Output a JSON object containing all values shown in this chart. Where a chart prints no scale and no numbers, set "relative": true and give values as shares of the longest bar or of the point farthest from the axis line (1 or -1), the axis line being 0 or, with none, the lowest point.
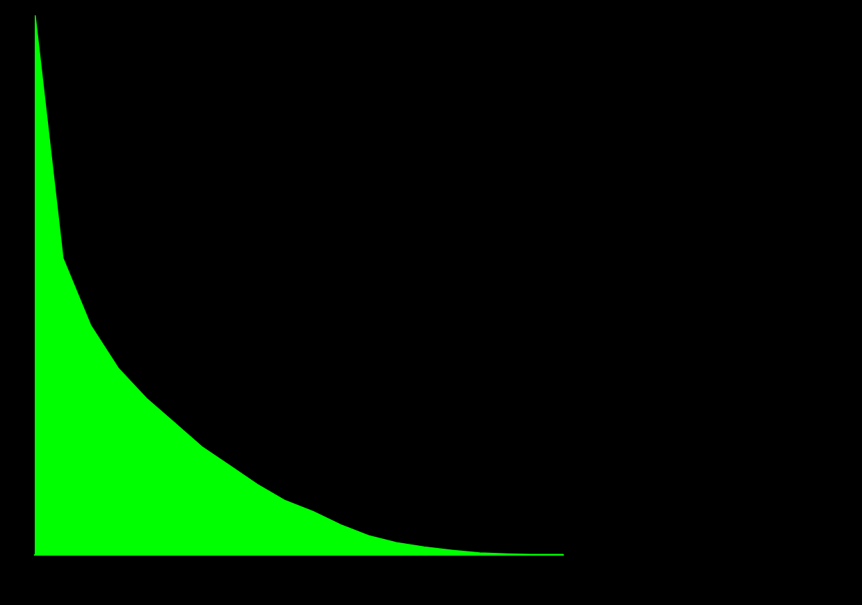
{
  "chart_data": {
    "type": "area",
    "relative": true,
    "color": "#00ff00",
    "categories": [
      null,
      null,
      null,
      null,
      null,
      null,
      null,
      null,
      null,
      null,
      null,
      null,
      null,
      null,
      null,
      null,
      null,
      null,
      null,
      null
    ],
    "values": [
      1.0,
      0.55,
      0.425,
      0.345,
      0.29,
      0.245,
      0.2,
      0.165,
      0.13,
      0.1,
      0.08,
      0.055,
      0.035,
      0.022,
      0.014,
      0.008,
      0.003,
      0.001,
      0,
      0
    ]
  }
}
